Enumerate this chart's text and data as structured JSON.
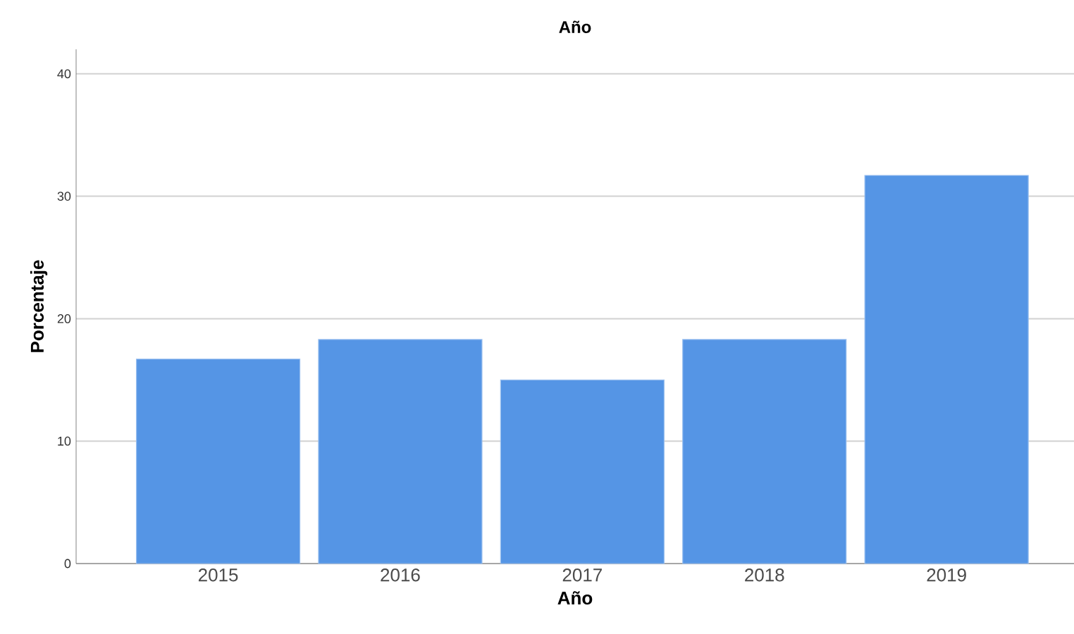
{
  "chart_data": {
    "type": "bar",
    "title": "Año",
    "xlabel": "Año",
    "ylabel": "Porcentaje",
    "categories": [
      "2015",
      "2016",
      "2017",
      "2018",
      "2019"
    ],
    "values": [
      16.7,
      18.3,
      15.0,
      18.3,
      31.7
    ],
    "color": "#5595e5",
    "ylim": [
      0,
      42
    ],
    "yticks": [
      0,
      10,
      20,
      30,
      40
    ],
    "grid": "y"
  }
}
